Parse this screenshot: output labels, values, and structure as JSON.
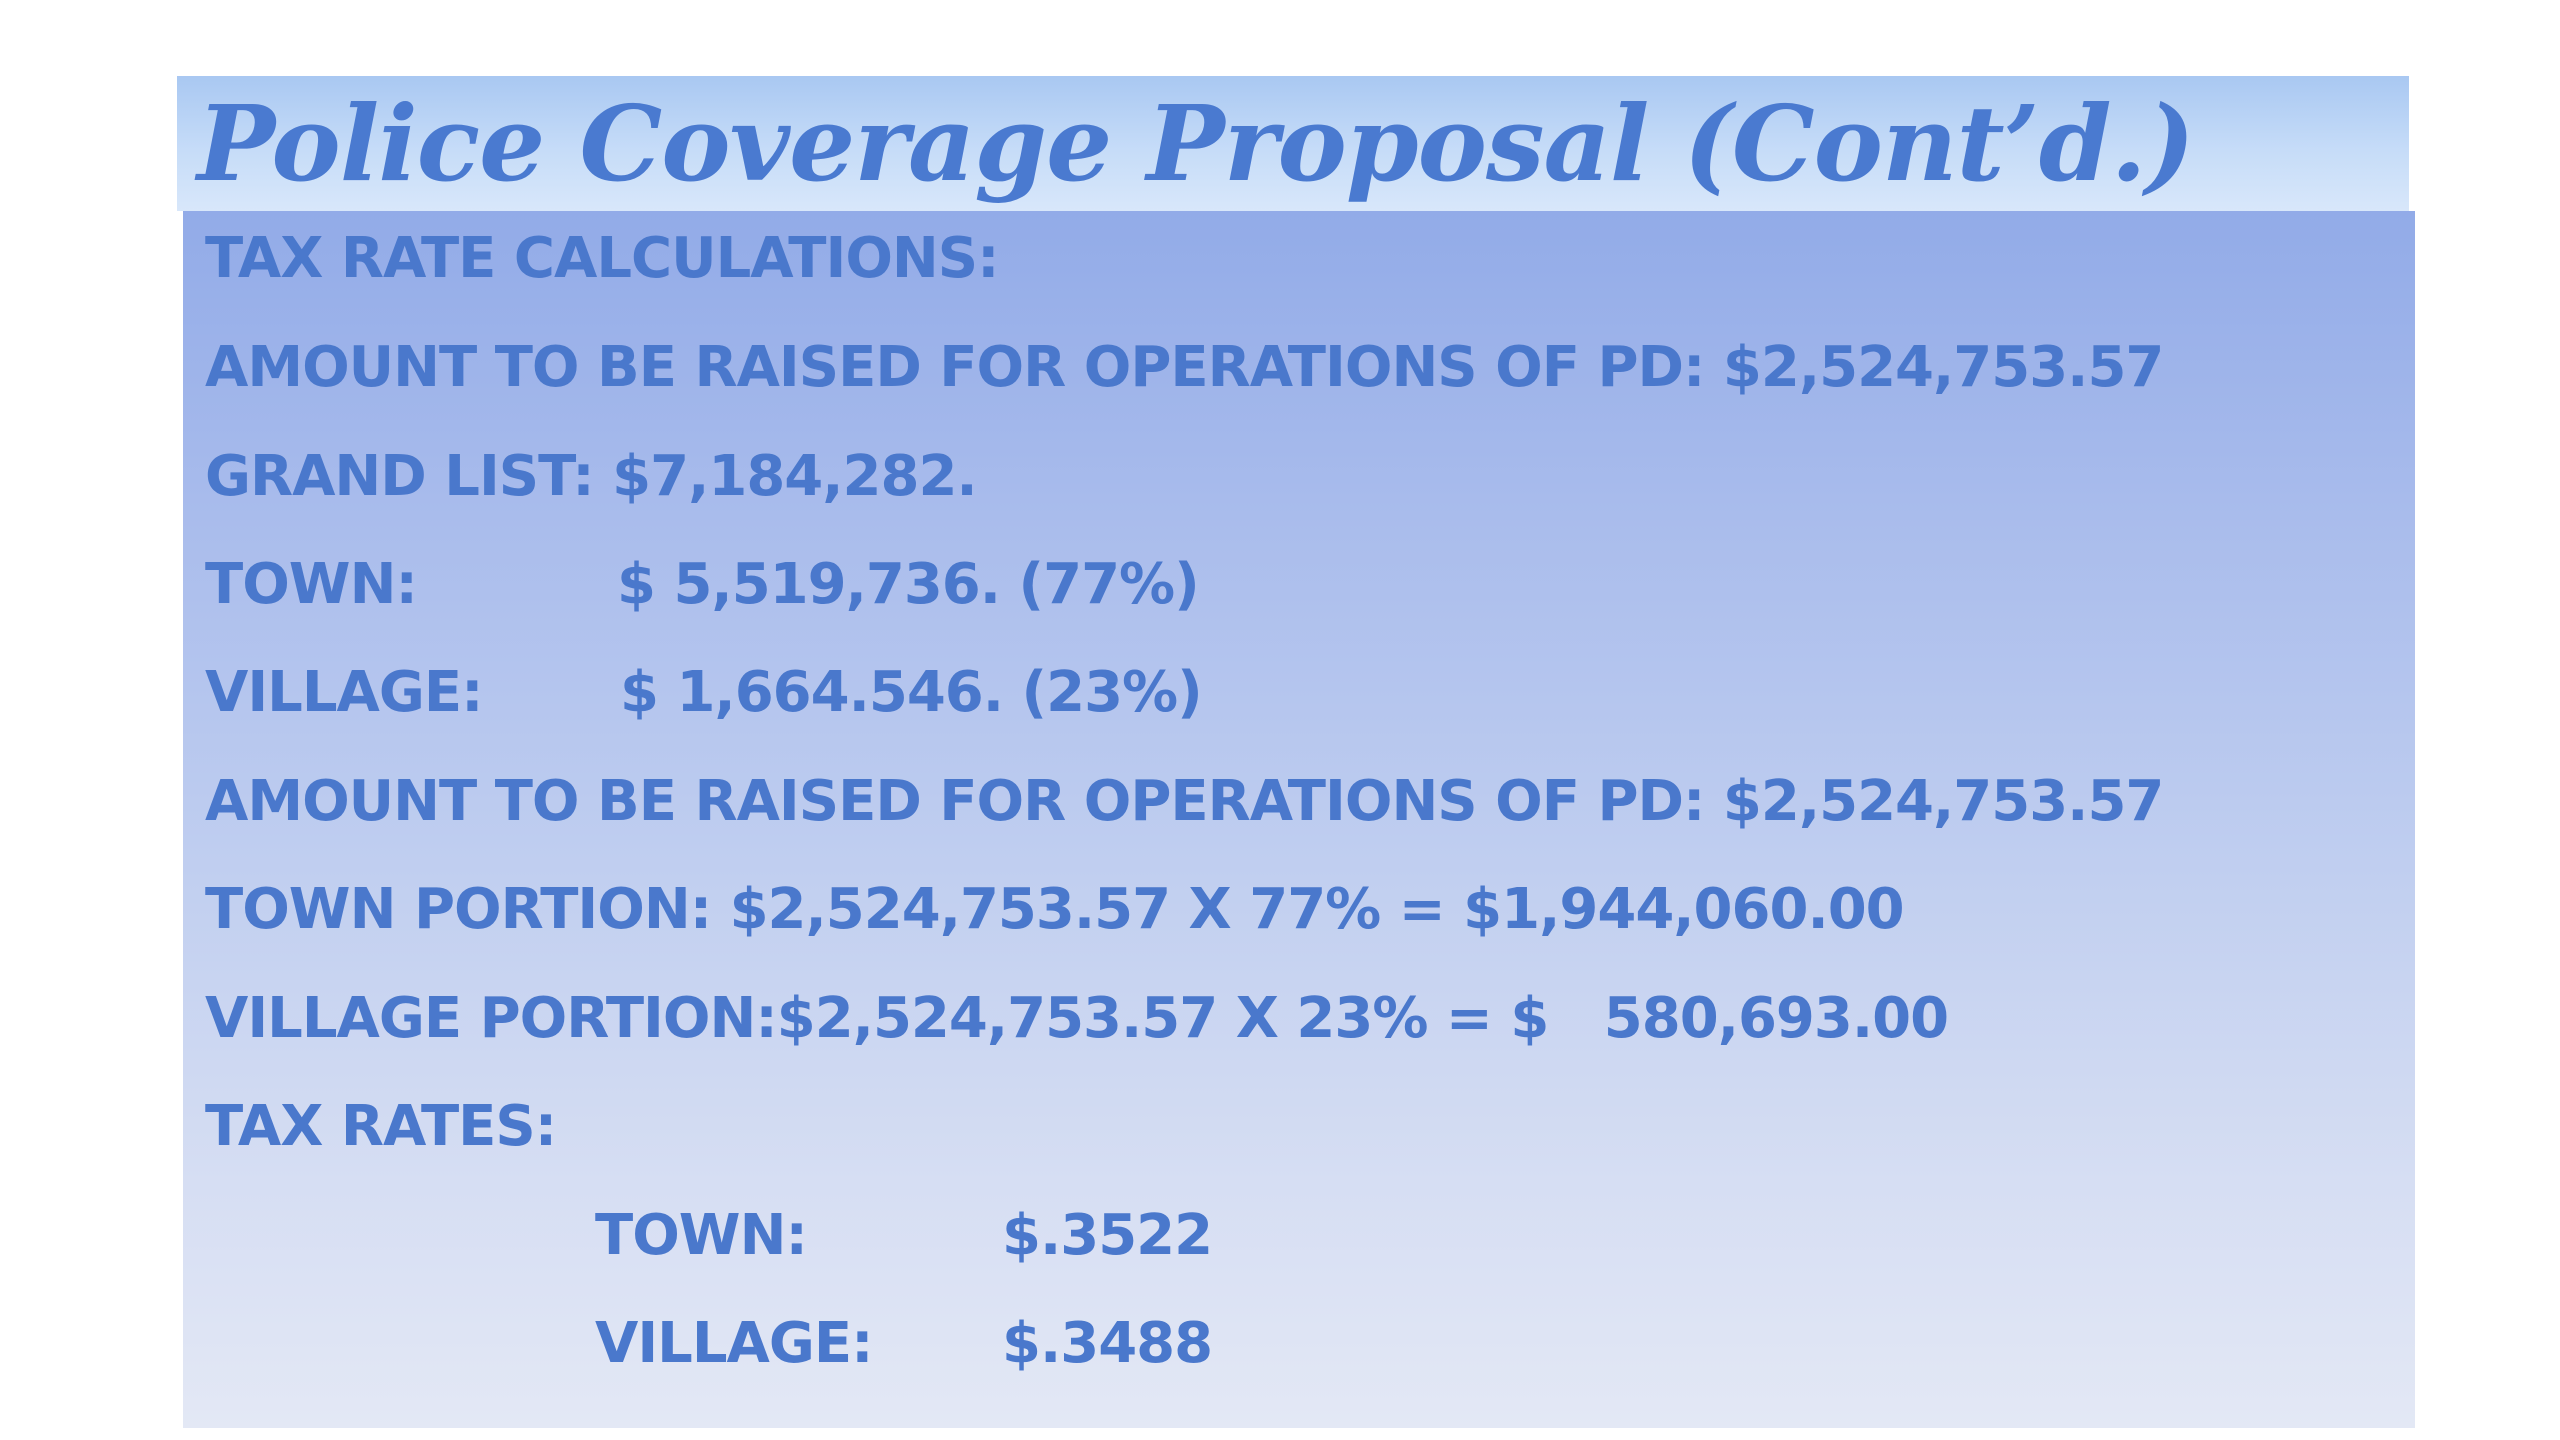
{
  "title": "Police Coverage Proposal (Cont’d.)",
  "lines": {
    "tax_rate_calculations": "TAX RATE CALCULATIONS:",
    "amount_raised_1": "AMOUNT TO BE RAISED FOR OPERATIONS OF PD:  $2,524,753.57",
    "grand_list": "GRAND LIST:  $7,184,282.",
    "town_label": "TOWN:",
    "town_value": "$ 5,519,736. (77%)",
    "village_label": "VILLAGE:",
    "village_value": "$ 1,664.546. (23%)",
    "amount_raised_2": "AMOUNT TO BE RAISED FOR OPERATIONS OF PD:  $2,524,753.57",
    "town_portion": "TOWN PORTION:  $2,524,753.57 X 77% = $1,944,060.00",
    "village_portion": "VILLAGE PORTION:$2,524,753.57 X 23% = $   580,693.00",
    "tax_rates": "TAX RATES:"
  },
  "tax_rates": {
    "town_label": "TOWN:",
    "town_rate": "$.3522",
    "village_label": "VILLAGE:",
    "village_rate": "$.3488"
  },
  "colors": {
    "text": "#4a78cc",
    "title_text": "#4a7ad0",
    "title_bar": "#c6dcf8",
    "content_box_top": "#92abe8",
    "content_box_bottom": "#e3e8f5"
  }
}
